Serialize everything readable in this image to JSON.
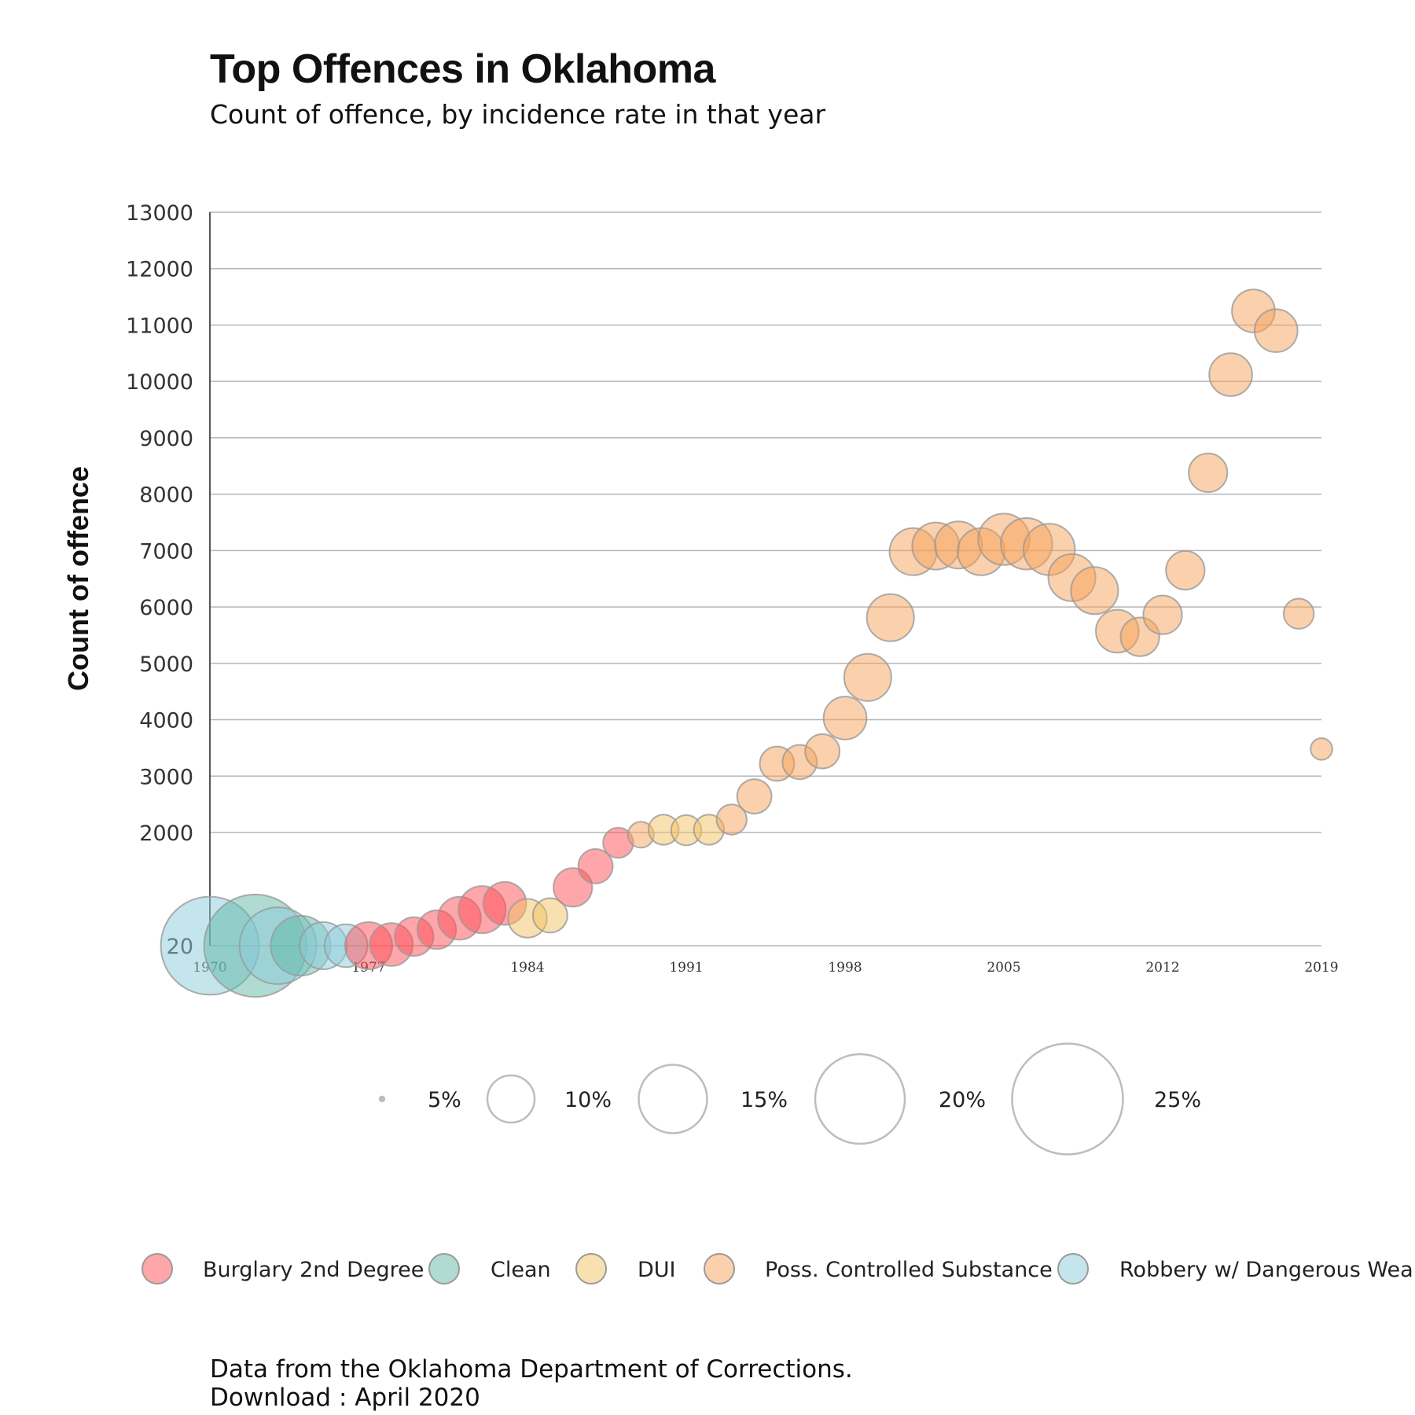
{
  "header": {
    "title": "Top Offences in Oklahoma",
    "subtitle": "Count of offence, by incidence rate in that year"
  },
  "footer": {
    "source": "Data from the Oklahoma Department of Corrections.",
    "download": "Download : April 2020"
  },
  "colors": {
    "Burglary 2nd Degree": "#ff4d55",
    "Clean": "#5fb8a6",
    "DUI": "#f2c161",
    "Poss. Controlled Substance": "#f7a159",
    "Robbery w/ Dangerous Weapon": "#8ccbdc",
    "gridline": "#b5b5b5",
    "circle_stroke": "#9a9a9a"
  },
  "chart_data": {
    "type": "scatter",
    "title": "Top Offences in Oklahoma",
    "subtitle": "Count of offence, by incidence rate in that year",
    "xlabel": "",
    "ylabel": "Count of offence",
    "xlim": [
      1970,
      2019
    ],
    "ylim": [
      20,
      13000
    ],
    "x_ticks": [
      "1970",
      "1977",
      "1984",
      "1991",
      "1998",
      "2005",
      "2012",
      "2019"
    ],
    "y_ticks": [
      "20",
      "2000",
      "3000",
      "4000",
      "5000",
      "6000",
      "7000",
      "8000",
      "9000",
      "10000",
      "11000",
      "12000",
      "13000"
    ],
    "grid": true,
    "size_legend": [
      "5%",
      "10%",
      "15%",
      "20%",
      "25%"
    ],
    "size_legend_values": [
      5,
      10,
      15,
      20,
      25
    ],
    "legend": [
      "Burglary 2nd Degree",
      "Clean",
      "DUI",
      "Poss. Controlled Substance",
      "Robbery w/ Dangerous Weapon"
    ],
    "series": [
      {
        "name": "Robbery w/ Dangerous Weapon",
        "points": [
          {
            "x": 1970,
            "y": 20,
            "r": 22
          },
          {
            "x": 1973,
            "y": 20,
            "r": 17
          },
          {
            "x": 1975,
            "y": 20,
            "r": 10
          },
          {
            "x": 1976,
            "y": 20,
            "r": 9
          }
        ]
      },
      {
        "name": "Clean",
        "points": [
          {
            "x": 1972,
            "y": 20,
            "r": 23
          },
          {
            "x": 1974,
            "y": 20,
            "r": 13
          }
        ]
      },
      {
        "name": "Burglary 2nd Degree",
        "points": [
          {
            "x": 1977,
            "y": 20,
            "r": 10
          },
          {
            "x": 1978,
            "y": 40,
            "r": 9
          },
          {
            "x": 1979,
            "y": 180,
            "r": 8
          },
          {
            "x": 1980,
            "y": 300,
            "r": 8
          },
          {
            "x": 1981,
            "y": 500,
            "r": 9
          },
          {
            "x": 1982,
            "y": 650,
            "r": 10
          },
          {
            "x": 1983,
            "y": 760,
            "r": 9
          },
          {
            "x": 1986,
            "y": 1040,
            "r": 8
          },
          {
            "x": 1987,
            "y": 1410,
            "r": 7
          },
          {
            "x": 1988,
            "y": 1820,
            "r": 6
          }
        ]
      },
      {
        "name": "DUI",
        "points": [
          {
            "x": 1984,
            "y": 500,
            "r": 8
          },
          {
            "x": 1985,
            "y": 550,
            "r": 7
          },
          {
            "x": 1990,
            "y": 2050,
            "r": 6
          },
          {
            "x": 1991,
            "y": 2040,
            "r": 6
          },
          {
            "x": 1992,
            "y": 2050,
            "r": 6
          }
        ]
      },
      {
        "name": "Poss. Controlled Substance",
        "points": [
          {
            "x": 1989,
            "y": 1960,
            "r": 5
          },
          {
            "x": 1993,
            "y": 2230,
            "r": 6
          },
          {
            "x": 1994,
            "y": 2640,
            "r": 7
          },
          {
            "x": 1995,
            "y": 3220,
            "r": 7
          },
          {
            "x": 1996,
            "y": 3250,
            "r": 7
          },
          {
            "x": 1997,
            "y": 3440,
            "r": 7
          },
          {
            "x": 1998,
            "y": 4030,
            "r": 9
          },
          {
            "x": 1999,
            "y": 4750,
            "r": 10
          },
          {
            "x": 2000,
            "y": 5810,
            "r": 10
          },
          {
            "x": 2001,
            "y": 6980,
            "r": 10
          },
          {
            "x": 2002,
            "y": 7080,
            "r": 10
          },
          {
            "x": 2003,
            "y": 7100,
            "r": 10
          },
          {
            "x": 2004,
            "y": 6980,
            "r": 10
          },
          {
            "x": 2005,
            "y": 7200,
            "r": 11
          },
          {
            "x": 2006,
            "y": 7120,
            "r": 11
          },
          {
            "x": 2007,
            "y": 7020,
            "r": 11
          },
          {
            "x": 2008,
            "y": 6520,
            "r": 10
          },
          {
            "x": 2009,
            "y": 6290,
            "r": 10
          },
          {
            "x": 2010,
            "y": 5570,
            "r": 9
          },
          {
            "x": 2011,
            "y": 5470,
            "r": 8
          },
          {
            "x": 2012,
            "y": 5860,
            "r": 8
          },
          {
            "x": 2013,
            "y": 6650,
            "r": 8
          },
          {
            "x": 2014,
            "y": 8380,
            "r": 8
          },
          {
            "x": 2015,
            "y": 10120,
            "r": 9
          },
          {
            "x": 2016,
            "y": 11250,
            "r": 9
          },
          {
            "x": 2017,
            "y": 10900,
            "r": 9
          },
          {
            "x": 2018,
            "y": 5880,
            "r": 6
          },
          {
            "x": 2019,
            "y": 3480,
            "r": 4
          }
        ]
      }
    ]
  }
}
